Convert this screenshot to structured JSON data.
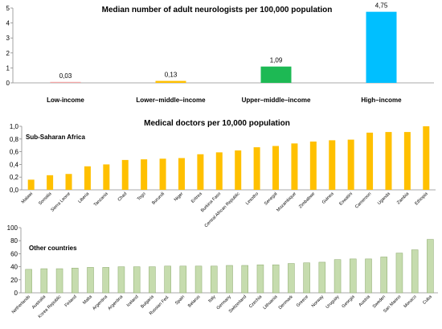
{
  "chart_data": [
    {
      "type": "bar",
      "title": "Median number of adult neurologists per 100,000 population",
      "categories": [
        "Low-income",
        "Lower–middle–income",
        "Upper–middle–income",
        "High–income"
      ],
      "values": [
        0.03,
        0.13,
        1.09,
        4.75
      ],
      "value_labels": [
        "0,03",
        "0,13",
        "1,09",
        "4,75"
      ],
      "ylim": [
        0,
        5
      ],
      "yticks": [
        "0",
        "1",
        "2",
        "3",
        "4",
        "5"
      ],
      "colors": [
        "#f4a6a6",
        "#ffc000",
        "#1db954",
        "#00bfff"
      ]
    },
    {
      "type": "bar",
      "title": "Medical doctors per 10,000 population",
      "annotation": "Sub-Saharan Africa",
      "categories": [
        "Malawi",
        "Somalia",
        "Sierra Leone",
        "Liberia",
        "Tanzania",
        "Chad",
        "Togo",
        "Burundi",
        "Niger",
        "Eritrea",
        "Burkina Faso",
        "Central African Republic",
        "Lesotho",
        "Senegal",
        "Mozambique",
        "Zimbabwe",
        "Guinea",
        "Eswatini",
        "Cameroon",
        "Uganda",
        "Zambia",
        "Ethiopia"
      ],
      "values": [
        0.16,
        0.23,
        0.25,
        0.37,
        0.4,
        0.47,
        0.48,
        0.49,
        0.5,
        0.56,
        0.59,
        0.62,
        0.67,
        0.69,
        0.73,
        0.76,
        0.78,
        0.79,
        0.9,
        0.91,
        0.91,
        1.0
      ],
      "ylim": [
        0,
        1
      ],
      "yticks": [
        "0,0",
        "0,2",
        "0,4",
        "0,6",
        "0,8",
        "1,0"
      ],
      "color": "#ffc000"
    },
    {
      "type": "bar",
      "annotation": "Other countries",
      "categories": [
        "Netherlands",
        "Australia",
        "Korea Republic",
        "Finland",
        "Malta",
        "Argentina",
        "Argentina",
        "Iceland",
        "Bulgaria",
        "Russian Fed.",
        "Spain",
        "Belarus",
        "Italy",
        "Germany",
        "Switzerland",
        "Czechia",
        "Lithuania",
        "Denmark",
        "Greece",
        "Norway",
        "Uruguay",
        "Georgia",
        "Austria",
        "Sweden",
        "San Marino",
        "Monaco",
        "Cuba"
      ],
      "values": [
        36,
        37,
        37,
        38,
        39,
        39,
        40,
        40,
        40,
        41,
        41,
        41,
        41,
        42,
        42,
        43,
        43,
        45,
        46,
        47,
        51,
        52,
        52,
        55,
        61,
        66,
        82
      ],
      "ylim": [
        0,
        100
      ],
      "yticks": [
        "0",
        "20",
        "40",
        "60",
        "80",
        "100"
      ],
      "color": "#c6dcae"
    }
  ]
}
